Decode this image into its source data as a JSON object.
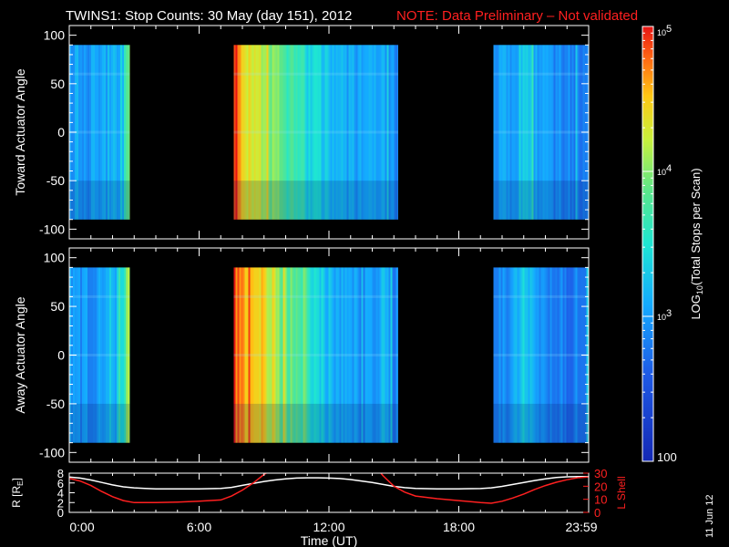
{
  "header": {
    "title": "TWINS1: Stop Counts: 30 May (day 151), 2012",
    "note": "NOTE: Data Preliminary – Not validated",
    "note_color": "#ff2020"
  },
  "footer": {
    "date_stamp": "11 Jun 12"
  },
  "chart_data": [
    {
      "type": "heatmap",
      "panel": "toward",
      "ylabel": "Toward Actuator Angle",
      "xlabel": "",
      "ylim": [
        -110,
        110
      ],
      "yticks": [
        -100,
        -50,
        0,
        50,
        100
      ],
      "data_ylim": [
        -90,
        90
      ],
      "xlim": [
        0,
        24
      ],
      "xticks": [
        "",
        "",
        "",
        "",
        ""
      ],
      "data_segments_hours": [
        [
          0.0,
          2.8
        ],
        [
          7.6,
          15.2
        ],
        [
          19.6,
          23.98
        ]
      ],
      "color_scale": "log10",
      "value_range": [
        100,
        100000
      ],
      "profile_log10_by_hour": [
        [
          0.0,
          3.05
        ],
        [
          1.0,
          3.0
        ],
        [
          2.0,
          3.05
        ],
        [
          2.5,
          3.3
        ],
        [
          2.7,
          3.9
        ],
        [
          7.6,
          4.9
        ],
        [
          7.8,
          4.6
        ],
        [
          8.2,
          4.35
        ],
        [
          9.0,
          4.15
        ],
        [
          10.0,
          3.75
        ],
        [
          11.0,
          3.45
        ],
        [
          12.0,
          3.25
        ],
        [
          13.0,
          3.05
        ],
        [
          14.0,
          3.0
        ],
        [
          14.5,
          3.1
        ],
        [
          15.1,
          2.9
        ],
        [
          19.6,
          2.95
        ],
        [
          20.5,
          3.05
        ],
        [
          21.0,
          3.35
        ],
        [
          22.0,
          2.95
        ],
        [
          23.0,
          2.85
        ],
        [
          23.98,
          2.9
        ]
      ]
    },
    {
      "type": "heatmap",
      "panel": "away",
      "ylabel": "Away Actuator Angle",
      "xlabel": "",
      "ylim": [
        -110,
        110
      ],
      "yticks": [
        -100,
        -50,
        0,
        50,
        100
      ],
      "data_ylim": [
        -90,
        90
      ],
      "xlim": [
        0,
        24
      ],
      "xticks": [
        "",
        "",
        "",
        "",
        ""
      ],
      "data_segments_hours": [
        [
          0.0,
          2.8
        ],
        [
          7.6,
          15.2
        ],
        [
          19.6,
          23.98
        ]
      ],
      "color_scale": "log10",
      "value_range": [
        100,
        100000
      ],
      "profile_log10_by_hour": [
        [
          0.0,
          3.0
        ],
        [
          1.0,
          2.95
        ],
        [
          2.0,
          3.1
        ],
        [
          2.5,
          3.45
        ],
        [
          2.7,
          4.0
        ],
        [
          7.6,
          4.95
        ],
        [
          7.8,
          4.75
        ],
        [
          8.2,
          4.55
        ],
        [
          9.0,
          4.35
        ],
        [
          10.0,
          3.9
        ],
        [
          11.0,
          3.5
        ],
        [
          12.0,
          3.2
        ],
        [
          13.0,
          3.0
        ],
        [
          14.0,
          2.95
        ],
        [
          14.5,
          3.15
        ],
        [
          15.1,
          2.85
        ],
        [
          19.6,
          2.9
        ],
        [
          20.5,
          3.0
        ],
        [
          21.0,
          3.3
        ],
        [
          22.0,
          2.9
        ],
        [
          23.0,
          2.8
        ],
        [
          23.98,
          2.85
        ]
      ]
    },
    {
      "type": "line",
      "panel": "orbit",
      "xlabel": "Time (UT)",
      "ylabel_left": "R [R",
      "ylabel_left_sub": "E",
      "ylabel_left_end": "]",
      "ylabel_right": "L Shell",
      "ylim_left": [
        0,
        8
      ],
      "yticks_left": [
        0,
        2,
        4,
        6,
        8
      ],
      "ylim_right": [
        0,
        30
      ],
      "yticks_right": [
        0,
        10,
        20,
        30
      ],
      "xlim": [
        0,
        24
      ],
      "xticks": [
        "0:00",
        "6:00",
        "12:00",
        "18:00",
        "23:59"
      ],
      "series": [
        {
          "axis": "left",
          "color": "#ffffff",
          "x": [
            0.0,
            0.5,
            1.0,
            1.5,
            2.0,
            2.5,
            3.0,
            3.5,
            4.0,
            5.0,
            6.0,
            7.0,
            7.5,
            8.0,
            8.5,
            9.0,
            9.5,
            10.0,
            10.5,
            11.0,
            11.5,
            12.0,
            12.5,
            13.0,
            13.5,
            14.0,
            14.5,
            15.0,
            15.5,
            16.0,
            17.0,
            18.0,
            19.0,
            19.5,
            20.0,
            20.5,
            21.0,
            21.5,
            22.0,
            22.5,
            23.0,
            23.5,
            23.98
          ],
          "y": [
            7.2,
            7.0,
            6.6,
            6.1,
            5.6,
            5.2,
            5.0,
            4.9,
            4.8,
            4.8,
            4.8,
            4.9,
            5.1,
            5.5,
            5.9,
            6.3,
            6.6,
            6.85,
            7.0,
            7.05,
            7.05,
            7.0,
            6.9,
            6.7,
            6.4,
            6.1,
            5.7,
            5.3,
            5.05,
            4.9,
            4.8,
            4.8,
            4.85,
            5.0,
            5.3,
            5.7,
            6.1,
            6.5,
            6.85,
            7.1,
            7.25,
            7.3,
            7.3
          ]
        },
        {
          "axis": "right",
          "color": "#ff2020",
          "x": [
            0.0,
            0.5,
            1.0,
            1.5,
            2.0,
            2.5,
            3.0,
            4.0,
            5.0,
            6.0,
            7.0,
            7.5,
            8.0,
            8.5,
            9.0,
            9.3,
            14.3,
            14.5,
            15.0,
            15.5,
            16.0,
            17.0,
            18.0,
            19.0,
            19.5,
            20.0,
            20.5,
            21.0,
            21.5,
            22.0,
            22.5,
            23.0,
            23.5,
            23.98
          ],
          "y": [
            26.0,
            24.0,
            20.5,
            16.0,
            12.0,
            9.0,
            7.5,
            7.5,
            7.8,
            8.5,
            9.5,
            12.5,
            17.0,
            22.5,
            29.0,
            32.0,
            32.0,
            28.0,
            20.0,
            15.5,
            12.5,
            10.5,
            9.0,
            7.5,
            7.0,
            8.5,
            11.0,
            14.0,
            17.5,
            20.5,
            23.0,
            25.0,
            26.5,
            27.0
          ]
        }
      ]
    }
  ],
  "colorbar": {
    "label_prefix": "LOG",
    "label_sub": "10",
    "label_suffix": "(Total Stops per Scan)",
    "log_min": 2,
    "log_max": 5,
    "ticks": [
      {
        "log": 2,
        "base": "100",
        "exp": ""
      },
      {
        "log": 3,
        "base": "10",
        "exp": "3"
      },
      {
        "log": 4,
        "base": "10",
        "exp": "4"
      },
      {
        "log": 5,
        "base": "10",
        "exp": "5"
      }
    ]
  }
}
